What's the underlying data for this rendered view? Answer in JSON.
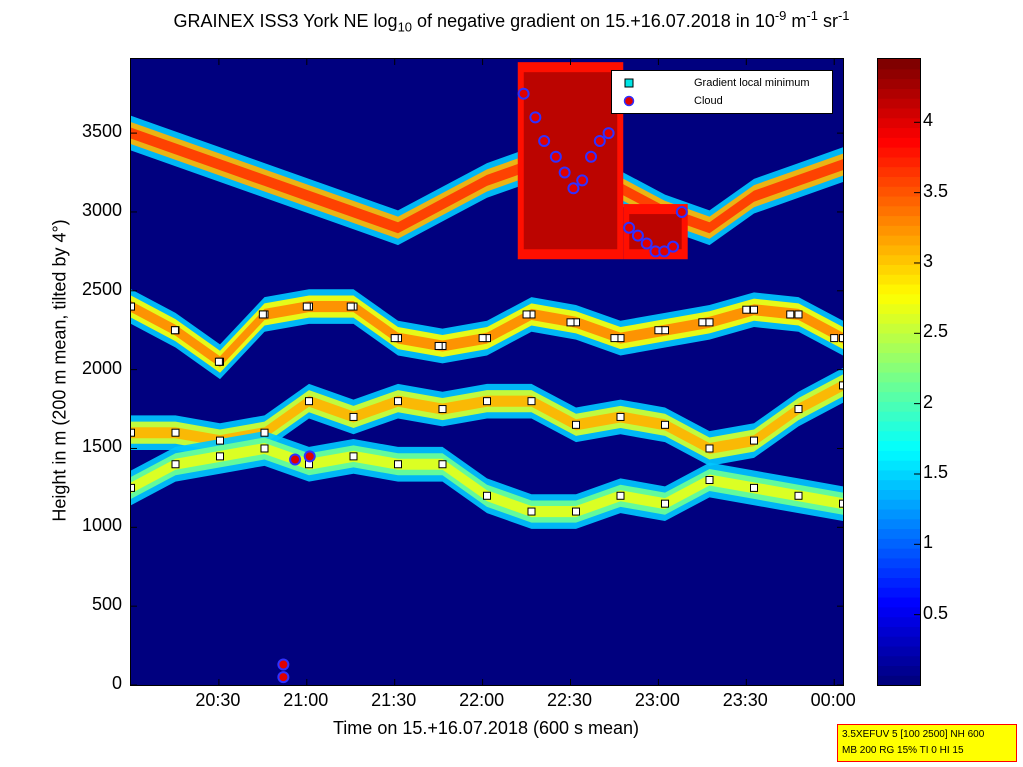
{
  "figure": {
    "title": "GRAINEX ISS3 York NE log",
    "title_sub": "10",
    "title_mid": " of negative gradient on 15.+16.07.2018 in 10",
    "title_exp1": "-9",
    "title_unit1": " m",
    "title_exp2": "-1",
    "title_unit2": " sr",
    "title_exp3": "-1",
    "xlabel": "Time on 15.+16.07.2018 (600 s mean)",
    "ylabel": "Height in m (200 m mean, tilted by 4°)",
    "info_line1": "3.5XEFUV 5 [100 2500] NH 600",
    "info_line2": "MB 200 RG 15% TI 0 HI 15"
  },
  "colors": {
    "background": "#00007f",
    "marker_fill": "#ffffff",
    "marker_cyan": "#00e5e5",
    "cloud_fill": "#e00000",
    "cloud_edge": "#ffffff",
    "info_bg": "#ffff00",
    "info_border": "#ff0000"
  },
  "chart_data": {
    "type": "heatmap",
    "title": "GRAINEX ISS3 York NE log10 of negative gradient on 15.+16.07.2018 in 10^-9 m^-1 sr^-1",
    "xlabel": "Time on 15.+16.07.2018 (600 s mean)",
    "ylabel": "Height in m (200 m mean, tilted by 4°)",
    "x_ticks": [
      "20:30",
      "21:00",
      "21:30",
      "22:00",
      "22:30",
      "23:00",
      "23:30",
      "00:00"
    ],
    "x_tick_minutes": [
      30,
      60,
      90,
      120,
      150,
      180,
      210,
      240
    ],
    "xlim_minutes": [
      0,
      243
    ],
    "xlim_labels": [
      "20:03",
      "00:03"
    ],
    "y_ticks": [
      0,
      500,
      1000,
      1500,
      2000,
      2500,
      3000,
      3500
    ],
    "ylim": [
      0,
      3970
    ],
    "colorbar": {
      "ticks": [
        0.5,
        1,
        1.5,
        2,
        2.5,
        3,
        3.5,
        4
      ],
      "tick_labels": [
        "0.5",
        "1",
        "1.5",
        "2",
        "2.5",
        "3",
        "3.5",
        "4"
      ],
      "range": [
        0,
        4.45
      ],
      "colormap": "jet"
    },
    "legend": {
      "position": "top-right",
      "entries": [
        "Gradient local minimum",
        "Cloud"
      ]
    },
    "layers": [
      {
        "name": "aerosol_layer_top",
        "height_m": [
          2400,
          2250,
          2050,
          2350,
          2400,
          2400,
          2200,
          2150,
          2200,
          2350,
          2300,
          2200,
          2250,
          2300,
          2380,
          2350,
          2200
        ]
      },
      {
        "name": "aerosol_layer_mid",
        "height_m": [
          1600,
          1600,
          1550,
          1600,
          1800,
          1700,
          1800,
          1750,
          1800,
          1800,
          1650,
          1700,
          1650,
          1500,
          1550,
          1750,
          1900
        ]
      },
      {
        "name": "aerosol_layer_low",
        "height_m": [
          1250,
          1400,
          1450,
          1500,
          1400,
          1450,
          1400,
          1400,
          1200,
          1100,
          1100,
          1200,
          1150,
          1300,
          1250,
          1200,
          1150
        ]
      },
      {
        "name": "upper_cloud_deck",
        "height_m": [
          3500,
          3400,
          3300,
          3200,
          3100,
          3000,
          2900,
          3050,
          3200,
          3300,
          3250,
          3150,
          3000,
          2900,
          3100,
          3200,
          3300
        ]
      }
    ],
    "gradient_local_minima_times_min": [
      0,
      15,
      30,
      45,
      60,
      75,
      90,
      105,
      120,
      135,
      150,
      165,
      180,
      195,
      210,
      225,
      240
    ],
    "gradient_local_minima_heights_m": [
      2400,
      2250,
      2050,
      2350,
      2400,
      2400,
      2200,
      2150,
      2200,
      2350,
      2300,
      2200,
      2250,
      2300,
      2380,
      2350,
      2200
    ],
    "cloud_points": [
      {
        "time_min": 56,
        "height_m": 1430
      },
      {
        "time_min": 61,
        "height_m": 1450
      },
      {
        "time_min": 52,
        "height_m": 130
      },
      {
        "time_min": 52,
        "height_m": 50
      },
      {
        "time_min": 134,
        "height_m": 3750
      },
      {
        "time_min": 138,
        "height_m": 3600
      },
      {
        "time_min": 141,
        "height_m": 3450
      },
      {
        "time_min": 145,
        "height_m": 3350
      },
      {
        "time_min": 148,
        "height_m": 3250
      },
      {
        "time_min": 151,
        "height_m": 3150
      },
      {
        "time_min": 154,
        "height_m": 3200
      },
      {
        "time_min": 157,
        "height_m": 3350
      },
      {
        "time_min": 160,
        "height_m": 3450
      },
      {
        "time_min": 163,
        "height_m": 3500
      },
      {
        "time_min": 166,
        "height_m": 3700
      },
      {
        "time_min": 170,
        "height_m": 2900
      },
      {
        "time_min": 173,
        "height_m": 2850
      },
      {
        "time_min": 176,
        "height_m": 2800
      },
      {
        "time_min": 179,
        "height_m": 2750
      },
      {
        "time_min": 182,
        "height_m": 2750
      },
      {
        "time_min": 185,
        "height_m": 2780
      },
      {
        "time_min": 188,
        "height_m": 3000
      }
    ]
  }
}
